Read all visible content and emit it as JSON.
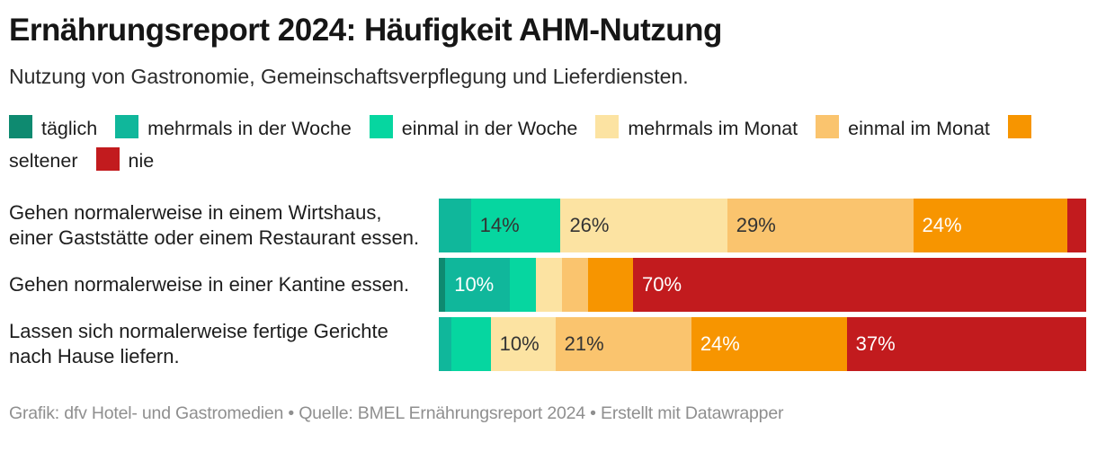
{
  "header": {
    "title": "Ernährungsreport 2024: Häufigkeit AHM-Nutzung",
    "subtitle": "Nutzung von Gastronomie, Gemeinschaftsverpflegung und Lieferdiensten."
  },
  "footer": {
    "credit": "Grafik: dfv Hotel- und Gastromedien • Quelle: BMEL Ernährungsreport 2024 • Erstellt mit Datawrapper"
  },
  "colors": {
    "background": "#ffffff",
    "title_text": "#161616",
    "body_text": "#1d1d1d",
    "footer_text": "#8f8f8f"
  },
  "chart_data": {
    "type": "bar",
    "variant": "stacked-horizontal",
    "unit": "%",
    "legend_position": "top",
    "axis": "none",
    "label_threshold": 10,
    "categories": [
      "Gehen normalerweise in einem Wirtshaus, einer Gaststätte oder einem Restaurant essen.",
      "Gehen normalerweise in einer Kantine essen.",
      "Lassen sich normalerweise fertige Gerichte nach Hause liefern."
    ],
    "series": [
      {
        "name": "täglich",
        "color": "#0e8a70",
        "text_color": "#ffffff",
        "values": [
          0,
          1,
          0
        ]
      },
      {
        "name": "mehrmals in der Woche",
        "color": "#10b79b",
        "text_color": "#ffffff",
        "values": [
          5,
          10,
          2
        ]
      },
      {
        "name": "einmal in der Woche",
        "color": "#06d6a0",
        "text_color": "#333333",
        "values": [
          14,
          4,
          6
        ]
      },
      {
        "name": "mehrmals im Monat",
        "color": "#fce3a2",
        "text_color": "#333333",
        "values": [
          26,
          4,
          10
        ]
      },
      {
        "name": "einmal im Monat",
        "color": "#fac46e",
        "text_color": "#333333",
        "values": [
          29,
          4,
          21
        ]
      },
      {
        "name": "seltener",
        "color": "#f79500",
        "text_color": "#ffffff",
        "values": [
          24,
          7,
          24
        ]
      },
      {
        "name": "nie",
        "color": "#c21b1e",
        "text_color": "#ffffff",
        "values": [
          3,
          70,
          37
        ]
      }
    ]
  }
}
